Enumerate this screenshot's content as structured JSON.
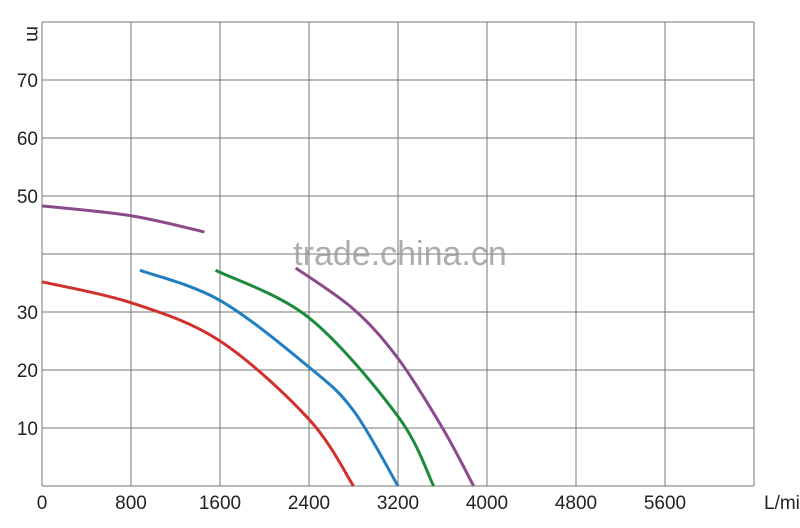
{
  "chart_data": {
    "type": "line",
    "title": "",
    "xlabel": "L/min",
    "ylabel": "m",
    "xlim": [
      0,
      6400
    ],
    "ylim": [
      0,
      80
    ],
    "grid": true,
    "x_ticks": [
      "0",
      "800",
      "1600",
      "2400",
      "3200",
      "4000",
      "4800",
      "5600"
    ],
    "y_ticks": [
      "10",
      "20",
      "30",
      "50",
      "60",
      "70"
    ],
    "watermark": "trade.china.cn",
    "series": [
      {
        "color": "#d2312b",
        "segments": [
          [
            [
              0,
              35.2
            ],
            [
              800,
              31.6
            ],
            [
              1600,
              25
            ],
            [
              2400,
              11.5
            ],
            [
              2800,
              0
            ]
          ]
        ]
      },
      {
        "color": "#1f7fc0",
        "segments": [
          [
            [
              880,
              37.2
            ],
            [
              1600,
              32
            ],
            [
              2400,
              20.5
            ],
            [
              2800,
              13
            ],
            [
              3200,
              0
            ]
          ]
        ]
      },
      {
        "color": "#1a8a3c",
        "segments": [
          [
            [
              1560,
              37.2
            ],
            [
              2400,
              29
            ],
            [
              3200,
              12
            ],
            [
              3520,
              0
            ]
          ]
        ]
      },
      {
        "color": "#8b4a8c",
        "segments": [
          [
            [
              0,
              48.3
            ],
            [
              800,
              46.6
            ],
            [
              1460,
              43.8
            ]
          ],
          [
            [
              2280,
              37.6
            ],
            [
              2800,
              30.5
            ],
            [
              3200,
              22
            ],
            [
              3600,
              10
            ],
            [
              3880,
              0
            ]
          ]
        ]
      }
    ]
  }
}
